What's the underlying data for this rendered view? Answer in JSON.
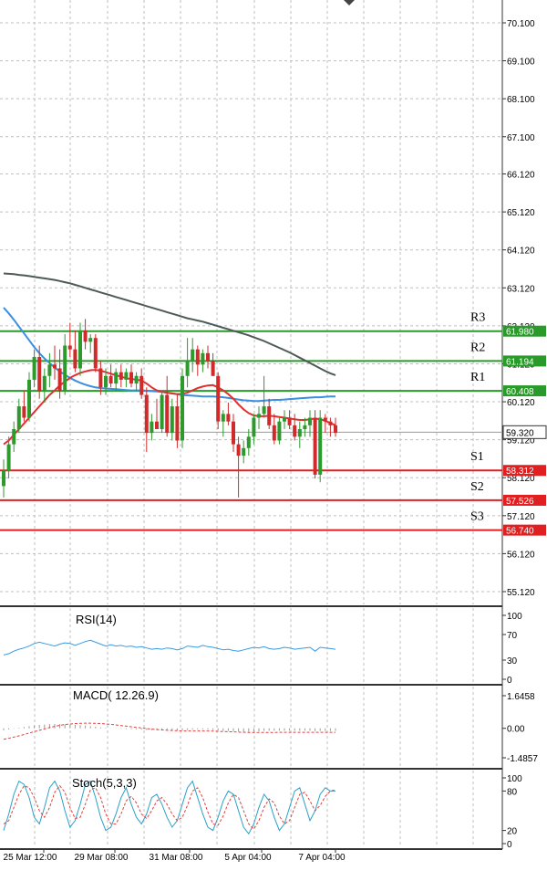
{
  "chart_data": {
    "type": "candlestick",
    "price_axis": {
      "ticks": [
        "70.100",
        "69.100",
        "68.100",
        "67.100",
        "66.120",
        "65.120",
        "64.120",
        "63.120",
        "62.120",
        "61.120",
        "60.120",
        "59.120",
        "58.120",
        "57.120",
        "56.120",
        "55.120"
      ],
      "ylim": [
        54.6,
        70.6
      ],
      "grid": true
    },
    "x_ticks": [
      "25 Mar 12:00",
      "29 Mar 08:00",
      "31 Mar 08:00",
      "5 Apr 04:00",
      "7 Apr 04:00"
    ],
    "current_price": "59.320",
    "levels": [
      {
        "name": "R3",
        "value": "61.980",
        "color": "#2a9a2a"
      },
      {
        "name": "R2",
        "value": "61.194",
        "color": "#2a9a2a"
      },
      {
        "name": "R1",
        "value": "60.408",
        "color": "#2a9a2a"
      },
      {
        "name": "S1",
        "value": "58.312",
        "color": "#e02020"
      },
      {
        "name": "S2",
        "value": "57.526",
        "color": "#e02020"
      },
      {
        "name": "S3",
        "value": "56.740",
        "color": "#e02020"
      }
    ],
    "candles": [
      {
        "o": 57.9,
        "h": 58.6,
        "l": 57.6,
        "c": 58.3
      },
      {
        "o": 58.3,
        "h": 59.2,
        "l": 58.1,
        "c": 59.0
      },
      {
        "o": 59.0,
        "h": 59.6,
        "l": 58.8,
        "c": 59.4
      },
      {
        "o": 59.4,
        "h": 60.2,
        "l": 59.3,
        "c": 60.0
      },
      {
        "o": 60.0,
        "h": 60.4,
        "l": 59.6,
        "c": 59.7
      },
      {
        "o": 59.7,
        "h": 60.9,
        "l": 59.6,
        "c": 60.7
      },
      {
        "o": 60.7,
        "h": 61.5,
        "l": 60.5,
        "c": 61.3
      },
      {
        "o": 61.3,
        "h": 61.6,
        "l": 60.2,
        "c": 60.4
      },
      {
        "o": 60.4,
        "h": 61.0,
        "l": 60.1,
        "c": 60.8
      },
      {
        "o": 60.8,
        "h": 61.4,
        "l": 60.5,
        "c": 61.1
      },
      {
        "o": 61.1,
        "h": 61.6,
        "l": 60.7,
        "c": 61.0
      },
      {
        "o": 61.0,
        "h": 61.5,
        "l": 60.2,
        "c": 60.4
      },
      {
        "o": 60.4,
        "h": 61.9,
        "l": 60.3,
        "c": 61.6
      },
      {
        "o": 61.6,
        "h": 62.2,
        "l": 61.3,
        "c": 61.5
      },
      {
        "o": 61.5,
        "h": 62.0,
        "l": 60.9,
        "c": 61.0
      },
      {
        "o": 61.0,
        "h": 62.2,
        "l": 60.8,
        "c": 62.0
      },
      {
        "o": 62.0,
        "h": 62.3,
        "l": 61.5,
        "c": 61.7
      },
      {
        "o": 61.7,
        "h": 61.9,
        "l": 61.4,
        "c": 61.8
      },
      {
        "o": 61.8,
        "h": 61.9,
        "l": 60.9,
        "c": 61.0
      },
      {
        "o": 61.0,
        "h": 61.2,
        "l": 60.3,
        "c": 60.5
      },
      {
        "o": 60.5,
        "h": 61.0,
        "l": 60.3,
        "c": 60.8
      },
      {
        "o": 60.8,
        "h": 61.1,
        "l": 60.5,
        "c": 60.6
      },
      {
        "o": 60.6,
        "h": 61.0,
        "l": 60.4,
        "c": 60.9
      },
      {
        "o": 60.9,
        "h": 61.1,
        "l": 60.5,
        "c": 60.7
      },
      {
        "o": 60.7,
        "h": 61.0,
        "l": 60.5,
        "c": 60.9
      },
      {
        "o": 60.9,
        "h": 61.1,
        "l": 60.5,
        "c": 60.6
      },
      {
        "o": 60.6,
        "h": 60.9,
        "l": 60.4,
        "c": 60.8
      },
      {
        "o": 60.8,
        "h": 61.0,
        "l": 60.2,
        "c": 60.3
      },
      {
        "o": 60.3,
        "h": 60.5,
        "l": 58.8,
        "c": 59.3
      },
      {
        "o": 59.3,
        "h": 59.8,
        "l": 59.1,
        "c": 59.6
      },
      {
        "o": 59.6,
        "h": 60.2,
        "l": 59.4,
        "c": 59.4
      },
      {
        "o": 59.4,
        "h": 60.4,
        "l": 59.3,
        "c": 60.3
      },
      {
        "o": 60.3,
        "h": 60.8,
        "l": 59.2,
        "c": 59.3
      },
      {
        "o": 59.3,
        "h": 60.2,
        "l": 59.1,
        "c": 60.0
      },
      {
        "o": 60.0,
        "h": 60.3,
        "l": 58.9,
        "c": 59.1
      },
      {
        "o": 59.1,
        "h": 61.0,
        "l": 58.9,
        "c": 60.8
      },
      {
        "o": 60.8,
        "h": 61.8,
        "l": 60.5,
        "c": 61.2
      },
      {
        "o": 61.2,
        "h": 61.8,
        "l": 60.9,
        "c": 61.5
      },
      {
        "o": 61.5,
        "h": 61.6,
        "l": 60.8,
        "c": 61.1
      },
      {
        "o": 61.1,
        "h": 61.5,
        "l": 60.9,
        "c": 61.4
      },
      {
        "o": 61.4,
        "h": 61.6,
        "l": 61.0,
        "c": 61.2
      },
      {
        "o": 61.2,
        "h": 61.4,
        "l": 60.8,
        "c": 60.8
      },
      {
        "o": 60.8,
        "h": 60.9,
        "l": 59.4,
        "c": 59.6
      },
      {
        "o": 59.6,
        "h": 59.9,
        "l": 59.2,
        "c": 59.8
      },
      {
        "o": 59.8,
        "h": 60.1,
        "l": 59.5,
        "c": 59.6
      },
      {
        "o": 59.6,
        "h": 59.8,
        "l": 58.8,
        "c": 59.0
      },
      {
        "o": 59.0,
        "h": 59.2,
        "l": 57.6,
        "c": 58.7
      },
      {
        "o": 58.7,
        "h": 59.1,
        "l": 58.5,
        "c": 58.9
      },
      {
        "o": 58.9,
        "h": 59.4,
        "l": 58.7,
        "c": 59.2
      },
      {
        "o": 59.2,
        "h": 59.8,
        "l": 59.0,
        "c": 59.7
      },
      {
        "o": 59.7,
        "h": 60.0,
        "l": 59.4,
        "c": 59.8
      },
      {
        "o": 59.8,
        "h": 60.8,
        "l": 59.7,
        "c": 60.0
      },
      {
        "o": 60.0,
        "h": 60.2,
        "l": 59.4,
        "c": 59.5
      },
      {
        "o": 59.5,
        "h": 59.8,
        "l": 59.0,
        "c": 59.1
      },
      {
        "o": 59.1,
        "h": 59.7,
        "l": 59.0,
        "c": 59.6
      },
      {
        "o": 59.6,
        "h": 59.9,
        "l": 59.4,
        "c": 59.7
      },
      {
        "o": 59.7,
        "h": 59.9,
        "l": 59.4,
        "c": 59.5
      },
      {
        "o": 59.5,
        "h": 59.8,
        "l": 59.1,
        "c": 59.2
      },
      {
        "o": 59.2,
        "h": 59.6,
        "l": 58.9,
        "c": 59.4
      },
      {
        "o": 59.4,
        "h": 59.7,
        "l": 59.2,
        "c": 59.5
      },
      {
        "o": 59.5,
        "h": 59.9,
        "l": 59.2,
        "c": 59.7
      },
      {
        "o": 59.7,
        "h": 59.9,
        "l": 58.1,
        "c": 58.2
      },
      {
        "o": 58.2,
        "h": 59.9,
        "l": 58.0,
        "c": 59.7
      },
      {
        "o": 59.7,
        "h": 59.8,
        "l": 59.3,
        "c": 59.6
      },
      {
        "o": 59.6,
        "h": 59.7,
        "l": 59.2,
        "c": 59.5
      },
      {
        "o": 59.5,
        "h": 59.7,
        "l": 59.2,
        "c": 59.3
      }
    ],
    "ma_slow": [
      63.5,
      63.49,
      63.48,
      63.46,
      63.45,
      63.43,
      63.41,
      63.39,
      63.37,
      63.35,
      63.33,
      63.3,
      63.27,
      63.24,
      63.2,
      63.16,
      63.12,
      63.08,
      63.04,
      63.0,
      62.96,
      62.92,
      62.88,
      62.84,
      62.8,
      62.76,
      62.72,
      62.68,
      62.64,
      62.6,
      62.56,
      62.52,
      62.48,
      62.44,
      62.4,
      62.36,
      62.32,
      62.29,
      62.26,
      62.23,
      62.19,
      62.15,
      62.11,
      62.07,
      62.03,
      61.99,
      61.95,
      61.91,
      61.87,
      61.82,
      61.77,
      61.72,
      61.66,
      61.6,
      61.54,
      61.48,
      61.42,
      61.35,
      61.28,
      61.21,
      61.14,
      61.07,
      61.0,
      60.93,
      60.87,
      60.82
    ],
    "ma_mid": [
      62.6,
      62.45,
      62.28,
      62.1,
      61.92,
      61.74,
      61.56,
      61.4,
      61.26,
      61.14,
      61.02,
      60.92,
      60.83,
      60.75,
      60.68,
      60.62,
      60.57,
      60.53,
      60.5,
      60.48,
      60.47,
      60.46,
      60.45,
      60.44,
      60.43,
      60.42,
      60.42,
      60.42,
      60.41,
      60.4,
      60.39,
      60.38,
      60.36,
      60.34,
      60.32,
      60.3,
      60.29,
      60.28,
      60.27,
      60.26,
      60.26,
      60.26,
      60.25,
      60.24,
      60.22,
      60.2,
      60.18,
      60.16,
      60.15,
      60.14,
      60.14,
      60.15,
      60.16,
      60.17,
      60.17,
      60.18,
      60.19,
      60.2,
      60.21,
      60.22,
      60.23,
      60.24,
      60.24,
      60.25,
      60.26,
      60.26
    ],
    "ma_fast": [
      59.0,
      59.1,
      59.25,
      59.4,
      59.55,
      59.7,
      59.85,
      60.0,
      60.15,
      60.3,
      60.42,
      60.55,
      60.65,
      60.75,
      60.82,
      60.88,
      60.92,
      60.95,
      60.96,
      60.94,
      60.9,
      60.86,
      60.82,
      60.78,
      60.74,
      60.72,
      60.7,
      60.68,
      60.6,
      60.5,
      60.42,
      60.38,
      60.36,
      60.34,
      60.32,
      60.33,
      60.36,
      60.42,
      60.48,
      60.52,
      60.55,
      60.56,
      60.5,
      60.42,
      60.32,
      60.2,
      60.05,
      59.92,
      59.82,
      59.76,
      59.74,
      59.74,
      59.75,
      59.74,
      59.72,
      59.7,
      59.68,
      59.66,
      59.64,
      59.64,
      59.66,
      59.68,
      59.66,
      59.62,
      59.56,
      59.5
    ],
    "rsi": {
      "title": "RSI(14)",
      "ticks": [
        "100",
        "70",
        "30",
        "0"
      ],
      "ylim": [
        0,
        100
      ],
      "values": [
        38,
        40,
        44,
        47,
        49,
        52,
        56,
        58,
        56,
        54,
        52,
        55,
        57,
        56,
        53,
        56,
        59,
        61,
        58,
        55,
        52,
        54,
        52,
        53,
        51,
        52,
        50,
        51,
        49,
        47,
        48,
        47,
        49,
        48,
        46,
        48,
        52,
        51,
        50,
        53,
        51,
        50,
        48,
        46,
        47,
        45,
        44,
        46,
        48,
        50,
        49,
        51,
        48,
        47,
        48,
        50,
        49,
        47,
        48,
        49,
        50,
        44,
        50,
        49,
        48,
        47
      ]
    },
    "macd": {
      "title": "MACD( 12.26.9)",
      "ticks": [
        "1.6458",
        "0.00",
        "-1.4857"
      ],
      "ylim": [
        -1.4857,
        1.6458
      ],
      "hist": [
        -0.1,
        -0.06,
        -0.02,
        0.03,
        0.07,
        0.11,
        0.14,
        0.17,
        0.19,
        0.21,
        0.22,
        0.22,
        0.21,
        0.2,
        0.18,
        0.16,
        0.14,
        0.11,
        0.08,
        0.05,
        0.03,
        0.01,
        -0.01,
        -0.02,
        -0.03,
        -0.04,
        -0.05,
        -0.06,
        -0.08,
        -0.09,
        -0.1,
        -0.1,
        -0.1,
        -0.11,
        -0.11,
        -0.1,
        -0.08,
        -0.06,
        -0.05,
        -0.05,
        -0.06,
        -0.08,
        -0.1,
        -0.12,
        -0.13,
        -0.14,
        -0.16,
        -0.17,
        -0.17,
        -0.16,
        -0.15,
        -0.13,
        -0.12,
        -0.12,
        -0.12,
        -0.12,
        -0.12,
        -0.12,
        -0.12,
        -0.12,
        -0.12,
        -0.14,
        -0.13,
        -0.13,
        -0.13,
        -0.13
      ],
      "signal": [
        -0.55,
        -0.5,
        -0.44,
        -0.38,
        -0.31,
        -0.24,
        -0.17,
        -0.1,
        -0.03,
        0.04,
        0.1,
        0.15,
        0.19,
        0.22,
        0.24,
        0.25,
        0.26,
        0.26,
        0.25,
        0.24,
        0.22,
        0.2,
        0.17,
        0.14,
        0.11,
        0.08,
        0.05,
        0.02,
        -0.01,
        -0.04,
        -0.06,
        -0.08,
        -0.1,
        -0.11,
        -0.12,
        -0.13,
        -0.13,
        -0.13,
        -0.13,
        -0.13,
        -0.13,
        -0.14,
        -0.15,
        -0.16,
        -0.17,
        -0.18,
        -0.19,
        -0.2,
        -0.21,
        -0.21,
        -0.21,
        -0.21,
        -0.21,
        -0.21,
        -0.2,
        -0.2,
        -0.2,
        -0.2,
        -0.2,
        -0.2,
        -0.2,
        -0.2,
        -0.2,
        -0.2,
        -0.2,
        -0.2
      ]
    },
    "stoch": {
      "title": "Stoch(5,3,3)",
      "ticks": [
        "100",
        "80",
        "20",
        "0"
      ],
      "ylim": [
        0,
        100
      ],
      "k": [
        20,
        45,
        75,
        95,
        90,
        70,
        40,
        30,
        55,
        85,
        95,
        80,
        50,
        25,
        35,
        60,
        90,
        95,
        70,
        40,
        20,
        25,
        45,
        70,
        85,
        60,
        40,
        30,
        45,
        70,
        75,
        60,
        40,
        25,
        35,
        60,
        85,
        95,
        70,
        45,
        25,
        20,
        40,
        65,
        80,
        75,
        50,
        25,
        15,
        30,
        55,
        75,
        65,
        40,
        20,
        30,
        55,
        80,
        85,
        60,
        35,
        50,
        75,
        85,
        80,
        80
      ],
      "d": [
        30,
        35,
        55,
        75,
        88,
        85,
        70,
        50,
        40,
        55,
        78,
        88,
        78,
        55,
        38,
        40,
        60,
        82,
        85,
        70,
        45,
        30,
        30,
        45,
        65,
        72,
        62,
        45,
        38,
        50,
        65,
        70,
        60,
        45,
        35,
        40,
        58,
        80,
        85,
        70,
        48,
        30,
        28,
        42,
        62,
        75,
        70,
        50,
        30,
        22,
        35,
        55,
        68,
        62,
        42,
        30,
        35,
        55,
        75,
        78,
        65,
        50,
        58,
        72,
        80,
        82
      ]
    }
  }
}
